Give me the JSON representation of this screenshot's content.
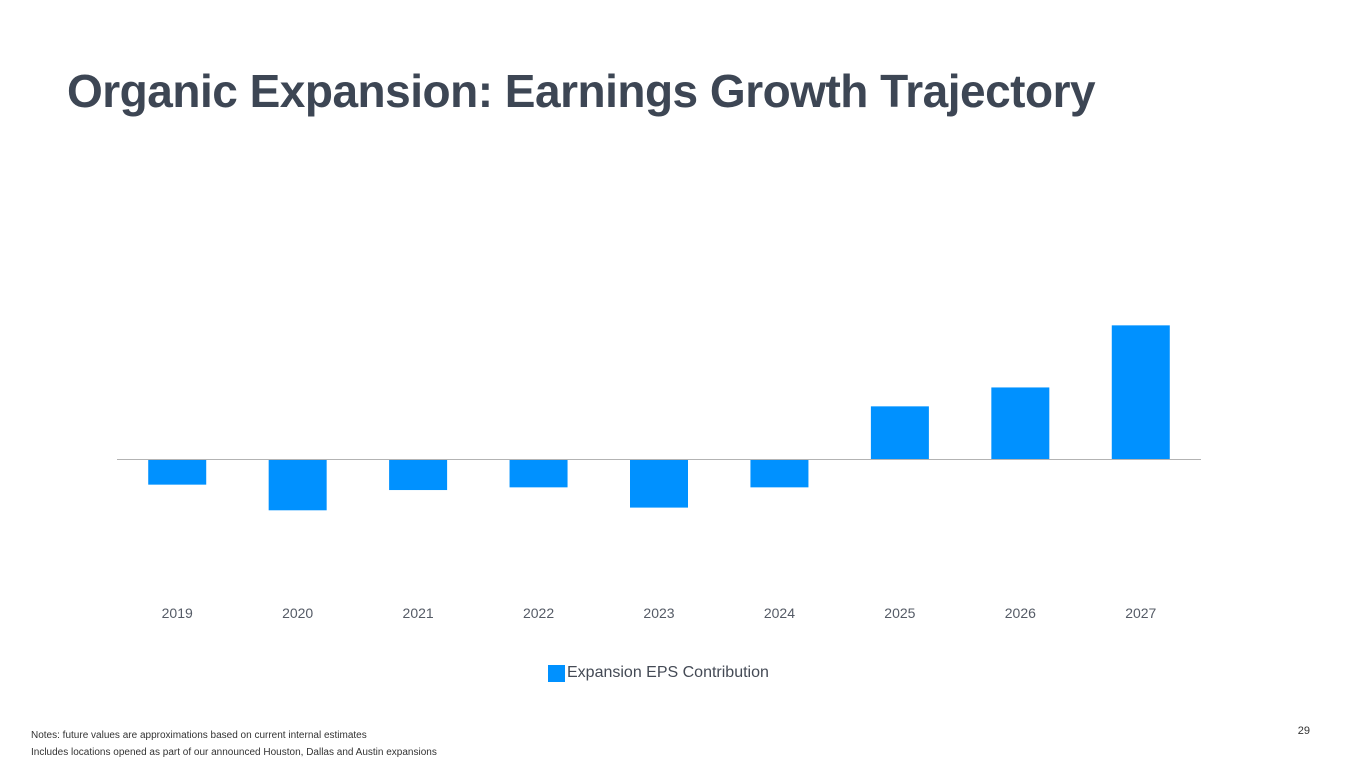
{
  "slide": {
    "title": "Organic Expansion: Earnings Growth Trajectory",
    "page_number": "29",
    "notes": [
      "Notes: future values are approximations based on current internal estimates",
      "Includes locations opened as part of our announced Houston, Dallas and Austin expansions"
    ]
  },
  "colors": {
    "bar": "#0091ff",
    "axis": "#b3b3b3",
    "title": "#3d4654"
  },
  "chart_data": {
    "type": "bar",
    "title": "",
    "xlabel": "",
    "ylabel": "",
    "categories": [
      "2019",
      "2020",
      "2021",
      "2022",
      "2023",
      "2024",
      "2025",
      "2026",
      "2027"
    ],
    "series": [
      {
        "name": "Expansion EPS Contribution",
        "values": [
          -0.19,
          -0.38,
          -0.23,
          -0.21,
          -0.36,
          -0.21,
          0.39,
          0.53,
          0.99
        ]
      }
    ],
    "ylim": [
      -1,
      1
    ],
    "grid": false,
    "y_ticks_visible": false,
    "legend": "bottom-center"
  }
}
